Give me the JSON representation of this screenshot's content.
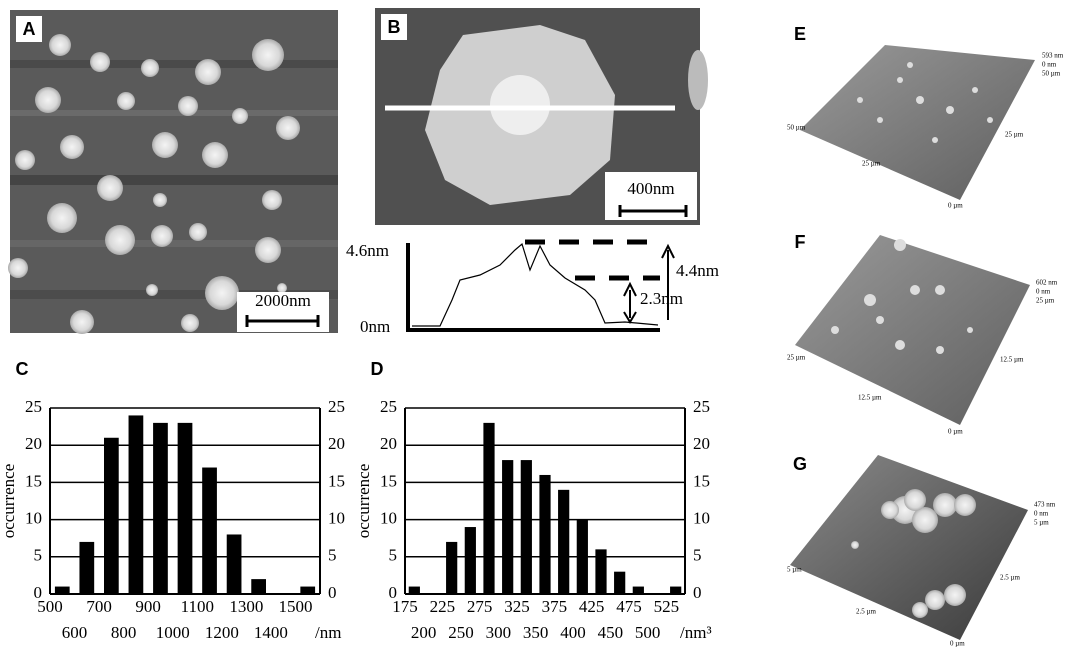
{
  "panels": {
    "A": {
      "label": "A",
      "scale_bar": "2000nm"
    },
    "B": {
      "label": "B",
      "scale_bar": "400nm",
      "profile": {
        "y_top": "4.6nm",
        "y_bottom": "0nm",
        "step_high": "4.4nm",
        "step_low": "2.3nm"
      }
    },
    "E": {
      "label": "E",
      "z_max": "593 nm",
      "z_min": "0 nm",
      "right_far": "50 µm",
      "right_mid": "25 µm",
      "origin": "0 µm",
      "left_mid": "25 µm",
      "left_far": "50 µm"
    },
    "F": {
      "label": "F",
      "z_max": "602 nm",
      "z_min": "0 nm",
      "right_far": "25 µm",
      "right_mid": "12.5 µm",
      "origin": "0 µm",
      "left_mid": "12.5 µm",
      "left_far": "25 µm"
    },
    "G": {
      "label": "G",
      "z_max": "473 nm",
      "z_min": "0 nm",
      "right_far": "5 µm",
      "right_mid": "2.5 µm",
      "origin": "0 µm",
      "left_mid": "2.5 µm",
      "left_far": "5 µm"
    }
  },
  "chart_data": [
    {
      "type": "bar",
      "panel_label": "C",
      "y_label": "occurrence",
      "x_unit": "/nm",
      "categories": [
        "500",
        "600",
        "700",
        "800",
        "900",
        "1000",
        "1100",
        "1200",
        "1300",
        "1400",
        "1500"
      ],
      "values": [
        1,
        7,
        21,
        24,
        23,
        23,
        17,
        8,
        2,
        0,
        1
      ],
      "color": "#000000",
      "ylim": [
        0,
        25
      ],
      "yticks": [
        0,
        5,
        10,
        15,
        20,
        25
      ],
      "grid": true,
      "mirror_y_axis": true
    },
    {
      "type": "bar",
      "panel_label": "D",
      "y_label": "occurrence",
      "x_unit": "/nm³",
      "categories": [
        "175",
        "200",
        "225",
        "250",
        "275",
        "300",
        "325",
        "350",
        "375",
        "400",
        "425",
        "450",
        "475",
        "500",
        "525"
      ],
      "values": [
        1,
        0,
        7,
        9,
        23,
        18,
        18,
        16,
        14,
        10,
        6,
        3,
        1,
        0,
        1
      ],
      "color": "#000000",
      "ylim": [
        0,
        25
      ],
      "yticks": [
        0,
        5,
        10,
        15,
        20,
        25
      ],
      "grid": true,
      "mirror_y_axis": true
    }
  ]
}
